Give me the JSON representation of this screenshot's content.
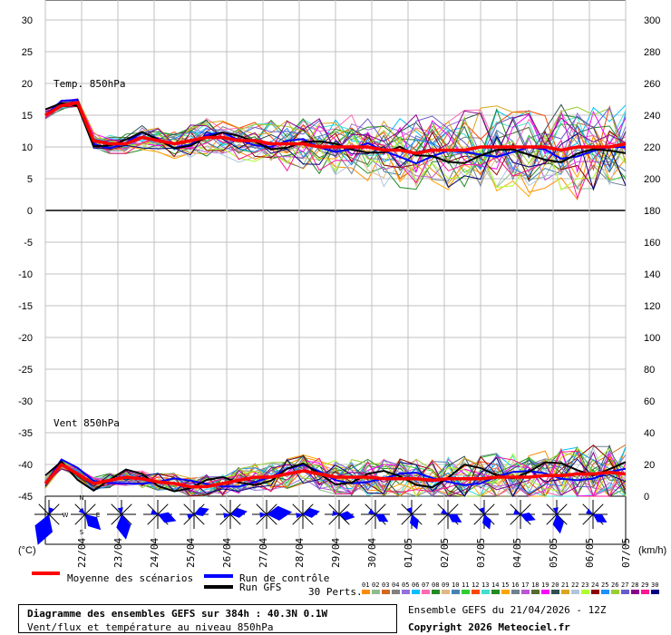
{
  "chart_data": {
    "type": "line",
    "title": "Diagramme des ensembles GEFS sur 384h : 40.3N 0.1W",
    "subtitle": "Vent/flux et température au niveau 850hPa",
    "x_dates": [
      "22/04",
      "23/04",
      "24/04",
      "25/04",
      "26/04",
      "27/04",
      "28/04",
      "29/04",
      "30/04",
      "01/05",
      "02/05",
      "03/05",
      "04/05",
      "05/05",
      "06/05",
      "07/05"
    ],
    "left_axis": {
      "unit": "(°C)",
      "ticks": [
        30,
        25,
        20,
        15,
        10,
        5,
        0,
        -5,
        -10,
        -15,
        -20,
        -25,
        -30,
        -35,
        -40,
        -45
      ],
      "ylim": [
        -45,
        30
      ]
    },
    "right_axis": {
      "unit": "(km/h)",
      "ticks": [
        300,
        280,
        260,
        240,
        220,
        200,
        180,
        160,
        140,
        120,
        100,
        80,
        60,
        40,
        20,
        0
      ],
      "ylim": [
        0,
        300
      ]
    },
    "temperature_panel": {
      "label": "Temp. 850hPa",
      "mean": [
        15.0,
        16.5,
        17.0,
        11.0,
        10.5,
        10.5,
        11.5,
        11.0,
        10.5,
        11.0,
        11.5,
        11.5,
        11.0,
        11.0,
        10.5,
        10.5,
        10.5,
        10.0,
        10.0,
        10.0,
        10.0,
        9.5,
        9.5,
        9.0,
        9.5,
        9.5,
        9.5,
        10.0,
        10.0,
        10.0,
        10.0,
        10.0,
        9.5,
        10.0,
        10.0,
        10.0,
        10.5
      ]
    },
    "wind_panel": {
      "label": "Vent 850hPa",
      "mean": [
        8,
        20,
        14,
        8,
        10,
        12,
        11,
        9,
        8,
        6,
        6,
        8,
        10,
        12,
        12,
        14,
        16,
        14,
        12,
        12,
        12,
        11,
        11,
        11,
        10,
        11,
        11,
        11,
        12,
        12,
        12,
        13,
        13,
        14,
        14,
        15,
        14
      ]
    },
    "wind_roses": [
      {
        "date": "22/04",
        "dir_deg": 200,
        "strength": 1.0
      },
      {
        "date": "23/04",
        "dir_deg": 135,
        "strength": 0.55
      },
      {
        "date": "24/04",
        "dir_deg": 170,
        "strength": 0.7
      },
      {
        "date": "25/04",
        "dir_deg": 110,
        "strength": 0.45
      },
      {
        "date": "26/04",
        "dir_deg": 70,
        "strength": 0.3
      },
      {
        "date": "27/04",
        "dir_deg": 80,
        "strength": 0.35
      },
      {
        "date": "28/04",
        "dir_deg": 85,
        "strength": 0.7
      },
      {
        "date": "29/04",
        "dir_deg": 80,
        "strength": 0.35
      },
      {
        "date": "30/04",
        "dir_deg": 100,
        "strength": 0.3
      },
      {
        "date": "01/05",
        "dir_deg": 120,
        "strength": 0.25
      },
      {
        "date": "02/05",
        "dir_deg": 160,
        "strength": 0.3
      },
      {
        "date": "03/05",
        "dir_deg": 120,
        "strength": 0.3
      },
      {
        "date": "04/05",
        "dir_deg": 160,
        "strength": 0.3
      },
      {
        "date": "05/05",
        "dir_deg": 110,
        "strength": 0.3
      },
      {
        "date": "06/05",
        "dir_deg": 170,
        "strength": 0.45
      },
      {
        "date": "07/05",
        "dir_deg": 120,
        "strength": 0.3
      }
    ],
    "compass": {
      "n": "N",
      "s": "S",
      "w": "W",
      "e": "E"
    },
    "legend": {
      "mean": "Moyenne des scénarios",
      "control": "Run de contrôle",
      "gfs": "Run GFS",
      "perts": "30 Perts.",
      "pert_ids": [
        "01",
        "02",
        "03",
        "04",
        "05",
        "06",
        "07",
        "08",
        "09",
        "10",
        "11",
        "12",
        "13",
        "14",
        "15",
        "16",
        "17",
        "18",
        "19",
        "20",
        "21",
        "22",
        "23",
        "24",
        "25",
        "26",
        "27",
        "28",
        "29",
        "30"
      ]
    },
    "colors": {
      "mean": "#ff0000",
      "control": "#0000ff",
      "gfs": "#000000",
      "grid": "#c0c0c0",
      "rose": "#0000ff"
    },
    "pert_colors": [
      "#ff8c00",
      "#8fbc8f",
      "#d2691e",
      "#808080",
      "#9370db",
      "#00bfff",
      "#ff69b4",
      "#228b22",
      "#deb887",
      "#4682b4",
      "#32cd32",
      "#ff4500",
      "#40e0d0",
      "#228b22",
      "#ffa500",
      "#708090",
      "#ba55d3",
      "#556b2f",
      "#ff00ff",
      "#2f4f4f",
      "#daa520",
      "#b0c4de",
      "#adff2f",
      "#8b0000",
      "#1e90ff",
      "#9acd32",
      "#6a5acd",
      "#8b008b",
      "#ff1493",
      "#000080"
    ],
    "grid": true
  },
  "footer": {
    "title": "Diagramme des ensembles GEFS sur 384h : 40.3N 0.1W",
    "subtitle": "Vent/flux et température au niveau 850hPa",
    "run": "Ensemble GEFS du 21/04/2026 - 12Z",
    "copyright": "Copyright 2026 Meteociel.fr"
  }
}
